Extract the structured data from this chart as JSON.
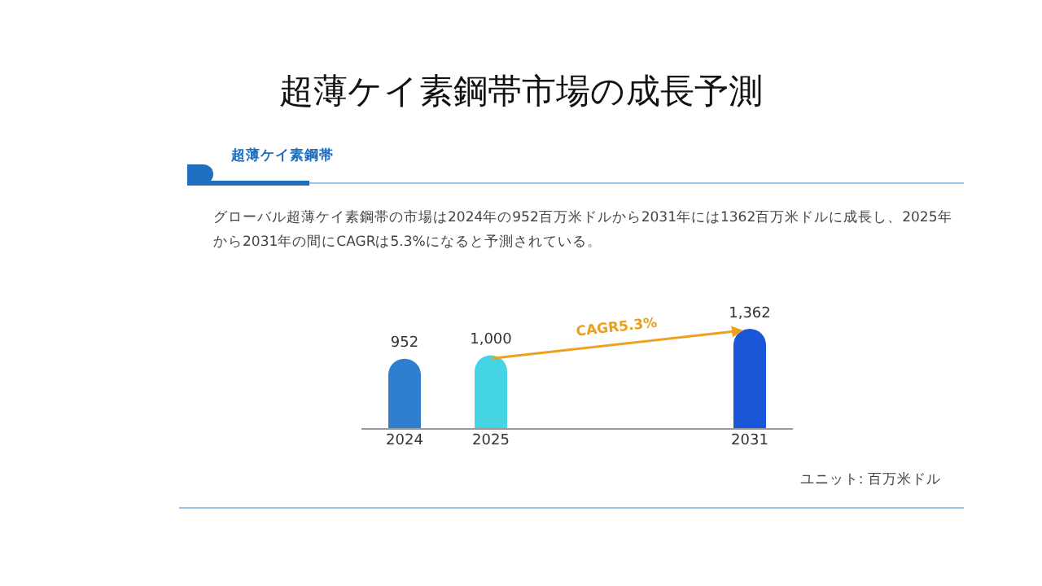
{
  "chart_data": {
    "type": "bar",
    "title": "超薄ケイ素鋼帯市場の成長予測",
    "subtitle": "超薄ケイ素鋼帯",
    "categories": [
      "2024",
      "2025",
      null,
      null,
      "2031"
    ],
    "values": [
      952,
      1000,
      null,
      null,
      1362
    ],
    "colors": [
      "#2e7fd0",
      "#45d4e4",
      null,
      null,
      "#1a56d8"
    ],
    "value_labels": [
      "952",
      "1,000",
      null,
      null,
      "1,362"
    ],
    "annotations": [
      "グローバル超薄ケイ素鋼帯の市場は2024年の952百万米ドルから2031年には1362百万米ドルに成長し、2025年から2031年の間にCAGRは5.3%になると予測されている。",
      "CAGR5.3%",
      "ユニット: 百万米ドル"
    ]
  }
}
